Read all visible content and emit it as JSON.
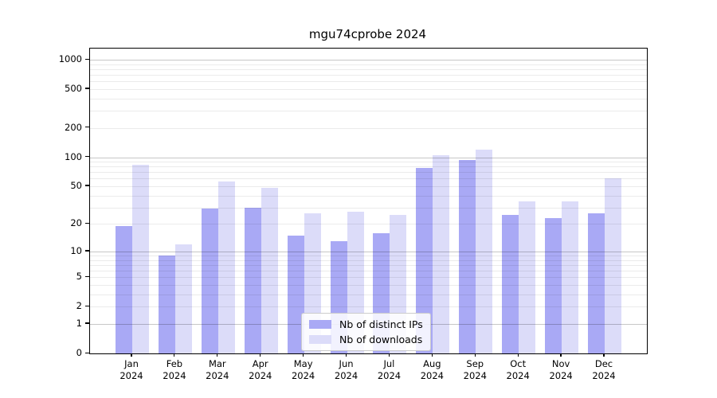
{
  "chart_data": {
    "type": "bar",
    "title": "mgu74cprobe 2024",
    "categories": [
      "Jan",
      "Feb",
      "Mar",
      "Apr",
      "May",
      "Jun",
      "Jul",
      "Aug",
      "Sep",
      "Oct",
      "Nov",
      "Dec"
    ],
    "x_year_label": "2024",
    "series": [
      {
        "name": "Nb of distinct IPs",
        "color": "#a9a9f5",
        "values": [
          19,
          9,
          29,
          30,
          15,
          13,
          16,
          77,
          94,
          25,
          23,
          26
        ]
      },
      {
        "name": "Nb of downloads",
        "color": "#dcdcf9",
        "values": [
          84,
          12,
          56,
          48,
          26,
          27,
          25,
          104,
          119,
          35,
          35,
          60
        ]
      }
    ],
    "y_scale": "log1p",
    "y_ticks": [
      0,
      1,
      2,
      5,
      10,
      20,
      50,
      100,
      200,
      500,
      1000
    ],
    "y_major_gridlines": [
      1,
      10,
      100,
      1000
    ],
    "ylim": [
      0,
      1300
    ],
    "grid": true,
    "legend_position": "lower center",
    "legend_labels": [
      "Nb of distinct IPs",
      "Nb of downloads"
    ]
  },
  "colors": {
    "major_grid": "rgba(0,0,0,0.22)",
    "minor_grid": "rgba(0,0,0,0.08)",
    "spine": "#000000",
    "background": "#ffffff"
  }
}
